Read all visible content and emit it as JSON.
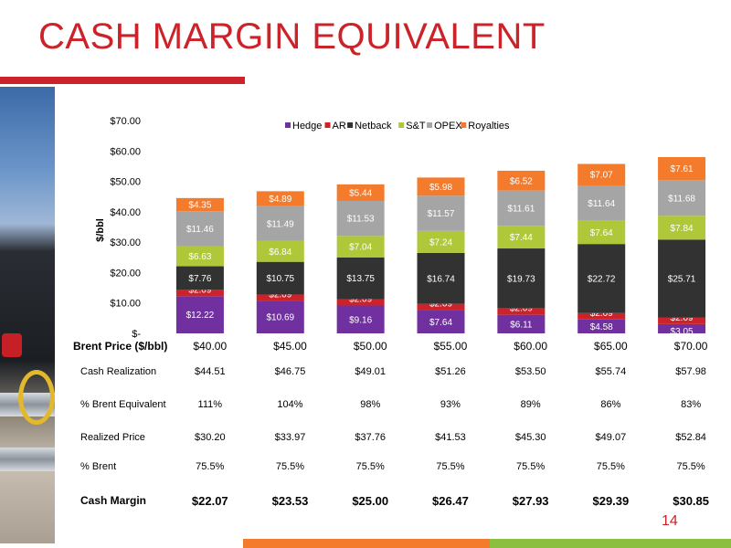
{
  "page": {
    "title": "CASH MARGIN EQUIVALENT",
    "page_number": "14"
  },
  "colors": {
    "accent": "#cc2229",
    "accent_green": "#8cbf3f"
  },
  "chart_data": {
    "type": "bar",
    "stacked": true,
    "ylabel": "$/bbl",
    "ylim": [
      0,
      70
    ],
    "yticks": [
      "$-",
      "$10.00",
      "$20.00",
      "$30.00",
      "$40.00",
      "$50.00",
      "$60.00",
      "$70.00"
    ],
    "legend_position": "top",
    "categories": [
      "$40.00",
      "$45.00",
      "$50.00",
      "$55.00",
      "$60.00",
      "$65.00",
      "$70.00"
    ],
    "series": [
      {
        "name": "Hedge",
        "color": "#7030a0",
        "values": [
          12.22,
          10.69,
          9.16,
          7.64,
          6.11,
          4.58,
          3.05
        ],
        "labels": [
          "$12.22",
          "$10.69",
          "$9.16",
          "$7.64",
          "$6.11",
          "$4.58",
          "$3.05"
        ]
      },
      {
        "name": "AR",
        "color": "#cc2229",
        "values": [
          2.09,
          2.09,
          2.09,
          2.09,
          2.09,
          2.09,
          2.09
        ],
        "labels": [
          "$2.09",
          "$2.09",
          "$2.09",
          "$2.09",
          "$2.09",
          "$2.09",
          "$2.09"
        ]
      },
      {
        "name": "Netback",
        "color": "#323232",
        "values": [
          7.76,
          10.75,
          13.75,
          16.74,
          19.73,
          22.72,
          25.71
        ],
        "labels": [
          "$7.76",
          "$10.75",
          "$13.75",
          "$16.74",
          "$19.73",
          "$22.72",
          "$25.71"
        ]
      },
      {
        "name": "S&T",
        "color": "#afc83a",
        "values": [
          6.63,
          6.84,
          7.04,
          7.24,
          7.44,
          7.64,
          7.84
        ],
        "labels": [
          "$6.63",
          "$6.84",
          "$7.04",
          "$7.24",
          "$7.44",
          "$7.64",
          "$7.84"
        ]
      },
      {
        "name": "OPEX",
        "color": "#a5a5a5",
        "values": [
          11.46,
          11.49,
          11.53,
          11.57,
          11.61,
          11.64,
          11.68
        ],
        "labels": [
          "$11.46",
          "$11.49",
          "$11.53",
          "$11.57",
          "$11.61",
          "$11.64",
          "$11.68"
        ]
      },
      {
        "name": "Royalties",
        "color": "#f47b2c",
        "values": [
          4.35,
          4.89,
          5.44,
          5.98,
          6.52,
          7.07,
          7.61
        ],
        "labels": [
          "$4.35",
          "$4.89",
          "$5.44",
          "$5.98",
          "$6.52",
          "$7.07",
          "$7.61"
        ]
      }
    ]
  },
  "table": {
    "header_label": "Brent Price ($/bbl)",
    "header_values": [
      "$40.00",
      "$45.00",
      "$50.00",
      "$55.00",
      "$60.00",
      "$65.00",
      "$70.00"
    ],
    "rows": [
      {
        "label": "Cash Realization",
        "values": [
          "$44.51",
          "$46.75",
          "$49.01",
          "$51.26",
          "$53.50",
          "$55.74",
          "$57.98"
        ]
      },
      {
        "label": "% Brent Equivalent",
        "values": [
          "111%",
          "104%",
          "98%",
          "93%",
          "89%",
          "86%",
          "83%"
        ]
      },
      {
        "label": "Realized Price",
        "values": [
          "$30.20",
          "$33.97",
          "$37.76",
          "$41.53",
          "$45.30",
          "$49.07",
          "$52.84"
        ]
      },
      {
        "label": "% Brent",
        "values": [
          "75.5%",
          "75.5%",
          "75.5%",
          "75.5%",
          "75.5%",
          "75.5%",
          "75.5%"
        ]
      }
    ],
    "cash_margin": {
      "label": "Cash Margin",
      "values": [
        "$22.07",
        "$23.53",
        "$25.00",
        "$26.47",
        "$27.93",
        "$29.39",
        "$30.85"
      ]
    }
  }
}
